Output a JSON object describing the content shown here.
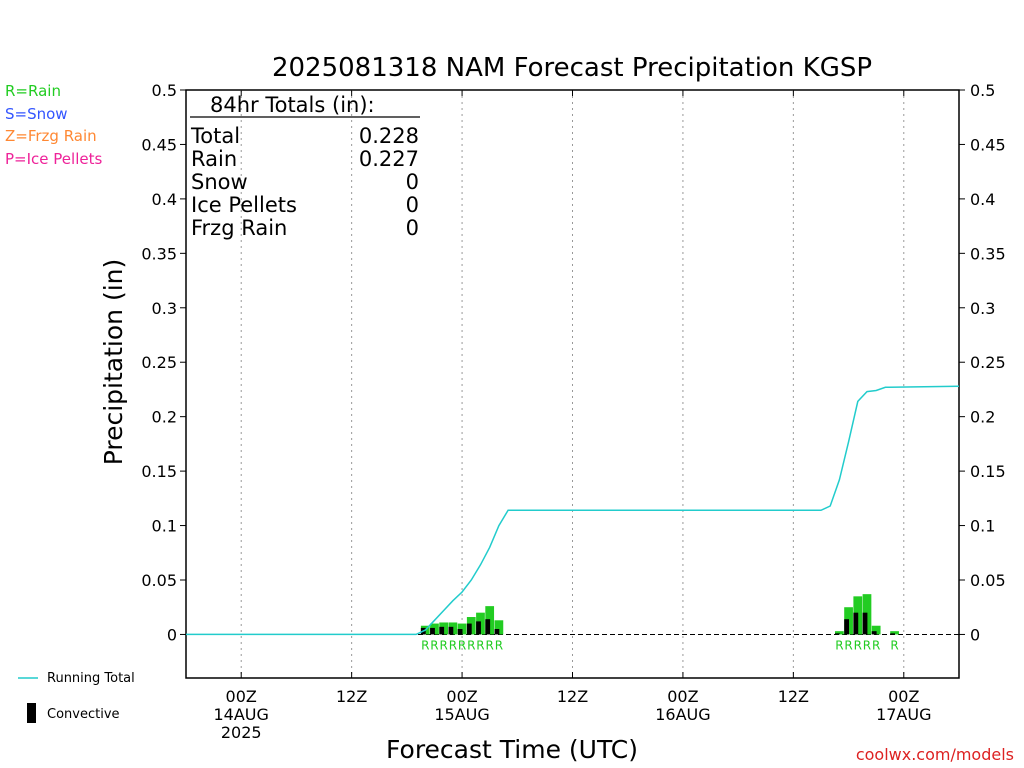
{
  "header": {
    "title": "2025081318 NAM Forecast Precipitation KGSP"
  },
  "type_legend": {
    "rain": {
      "text": "R=Rain",
      "color": "#22cc22"
    },
    "snow": {
      "text": "S=Snow",
      "color": "#3355ff"
    },
    "frzg": {
      "text": "Z=Frzg Rain",
      "color": "#ff8833"
    },
    "ice": {
      "text": "P=Ice Pellets",
      "color": "#ee2299"
    }
  },
  "totals": {
    "heading": "84hr Totals (in):",
    "rows": [
      {
        "label": "Total",
        "value": "0.228"
      },
      {
        "label": "Rain",
        "value": "0.227"
      },
      {
        "label": "Snow",
        "value": "0"
      },
      {
        "label": "Ice Pellets",
        "value": "0"
      },
      {
        "label": "Frzg Rain",
        "value": "0"
      }
    ]
  },
  "series_legend": {
    "running_total": "Running Total",
    "convective": "Convective"
  },
  "footer": {
    "credit": "coolwx.com/models"
  },
  "colors": {
    "line": "#22cccc",
    "bar": "#22cc22",
    "convective": "#000000",
    "rain_label": "#22cc22"
  },
  "chart_data": {
    "type": "bar",
    "title": "2025081318 NAM Forecast Precipitation KGSP",
    "xlabel": "Forecast Time (UTC)",
    "ylabel": "Precipitation (in)",
    "ylim": [
      -0.04,
      0.5
    ],
    "xlim": [
      "2025-08-13 18Z",
      "2025-08-17 06Z"
    ],
    "y_ticks": [
      "0",
      "0.05",
      "0.1",
      "0.15",
      "0.2",
      "0.25",
      "0.3",
      "0.35",
      "0.4",
      "0.45",
      "0.5"
    ],
    "y_tick_values": [
      0,
      0.05,
      0.1,
      0.15,
      0.2,
      0.25,
      0.3,
      0.35,
      0.4,
      0.45,
      0.5
    ],
    "x_ticks": [
      {
        "time": "2025-08-14 00Z",
        "lines": [
          "00Z",
          "14AUG",
          "2025"
        ]
      },
      {
        "time": "2025-08-14 12Z",
        "lines": [
          "12Z"
        ]
      },
      {
        "time": "2025-08-15 00Z",
        "lines": [
          "00Z",
          "15AUG"
        ]
      },
      {
        "time": "2025-08-15 12Z",
        "lines": [
          "12Z"
        ]
      },
      {
        "time": "2025-08-16 00Z",
        "lines": [
          "00Z",
          "16AUG"
        ]
      },
      {
        "time": "2025-08-16 12Z",
        "lines": [
          "12Z"
        ]
      },
      {
        "time": "2025-08-17 00Z",
        "lines": [
          "00Z",
          "17AUG"
        ]
      }
    ],
    "grid": "vertical dotted at tick times",
    "series": [
      {
        "name": "Running Total",
        "kind": "line",
        "points": [
          [
            "2025-08-13 18Z",
            0
          ],
          [
            "2025-08-14 19Z",
            0
          ],
          [
            "2025-08-14 20Z",
            0.004
          ],
          [
            "2025-08-14 21Z",
            0.013
          ],
          [
            "2025-08-14 22Z",
            0.022
          ],
          [
            "2025-08-14 23Z",
            0.031
          ],
          [
            "2025-08-15 00Z",
            0.039
          ],
          [
            "2025-08-15 01Z",
            0.05
          ],
          [
            "2025-08-15 02Z",
            0.064
          ],
          [
            "2025-08-15 03Z",
            0.08
          ],
          [
            "2025-08-15 04Z",
            0.1
          ],
          [
            "2025-08-15 05Z",
            0.114
          ],
          [
            "2025-08-16 15Z",
            0.114
          ],
          [
            "2025-08-16 16Z",
            0.118
          ],
          [
            "2025-08-16 17Z",
            0.142
          ],
          [
            "2025-08-16 18Z",
            0.177
          ],
          [
            "2025-08-16 19Z",
            0.214
          ],
          [
            "2025-08-16 20Z",
            0.223
          ],
          [
            "2025-08-16 21Z",
            0.224
          ],
          [
            "2025-08-16 22Z",
            0.227
          ],
          [
            "2025-08-17 06Z",
            0.228
          ]
        ]
      },
      {
        "name": "Convective",
        "kind": "bar",
        "bars": [
          {
            "time": "2025-08-14 20Z",
            "total": 0.008,
            "convective": 0.006
          },
          {
            "time": "2025-08-14 21Z",
            "total": 0.01,
            "convective": 0.006
          },
          {
            "time": "2025-08-14 22Z",
            "total": 0.011,
            "convective": 0.007
          },
          {
            "time": "2025-08-14 23Z",
            "total": 0.011,
            "convective": 0.007
          },
          {
            "time": "2025-08-15 00Z",
            "total": 0.01,
            "convective": 0.005
          },
          {
            "time": "2025-08-15 01Z",
            "total": 0.016,
            "convective": 0.01
          },
          {
            "time": "2025-08-15 02Z",
            "total": 0.02,
            "convective": 0.012
          },
          {
            "time": "2025-08-15 03Z",
            "total": 0.026,
            "convective": 0.014
          },
          {
            "time": "2025-08-15 04Z",
            "total": 0.013,
            "convective": 0.005
          },
          {
            "time": "2025-08-16 17Z",
            "total": 0.003,
            "convective": 0.001
          },
          {
            "time": "2025-08-16 18Z",
            "total": 0.025,
            "convective": 0.014
          },
          {
            "time": "2025-08-16 19Z",
            "total": 0.035,
            "convective": 0.02
          },
          {
            "time": "2025-08-16 20Z",
            "total": 0.037,
            "convective": 0.02
          },
          {
            "time": "2025-08-16 21Z",
            "total": 0.008,
            "convective": 0.003
          },
          {
            "time": "2025-08-16 23Z",
            "total": 0.003,
            "convective": 0.001
          }
        ]
      }
    ],
    "precip_type_labels": [
      {
        "time": "2025-08-14 20Z",
        "text": "R"
      },
      {
        "time": "2025-08-14 21Z",
        "text": "R"
      },
      {
        "time": "2025-08-14 22Z",
        "text": "R"
      },
      {
        "time": "2025-08-14 23Z",
        "text": "R"
      },
      {
        "time": "2025-08-15 00Z",
        "text": "R"
      },
      {
        "time": "2025-08-15 01Z",
        "text": "R"
      },
      {
        "time": "2025-08-15 02Z",
        "text": "R"
      },
      {
        "time": "2025-08-15 03Z",
        "text": "R"
      },
      {
        "time": "2025-08-15 04Z",
        "text": "R"
      },
      {
        "time": "2025-08-16 17Z",
        "text": "R"
      },
      {
        "time": "2025-08-16 18Z",
        "text": "R"
      },
      {
        "time": "2025-08-16 19Z",
        "text": "R"
      },
      {
        "time": "2025-08-16 20Z",
        "text": "R"
      },
      {
        "time": "2025-08-16 21Z",
        "text": "R"
      },
      {
        "time": "2025-08-16 23Z",
        "text": "R"
      }
    ]
  }
}
